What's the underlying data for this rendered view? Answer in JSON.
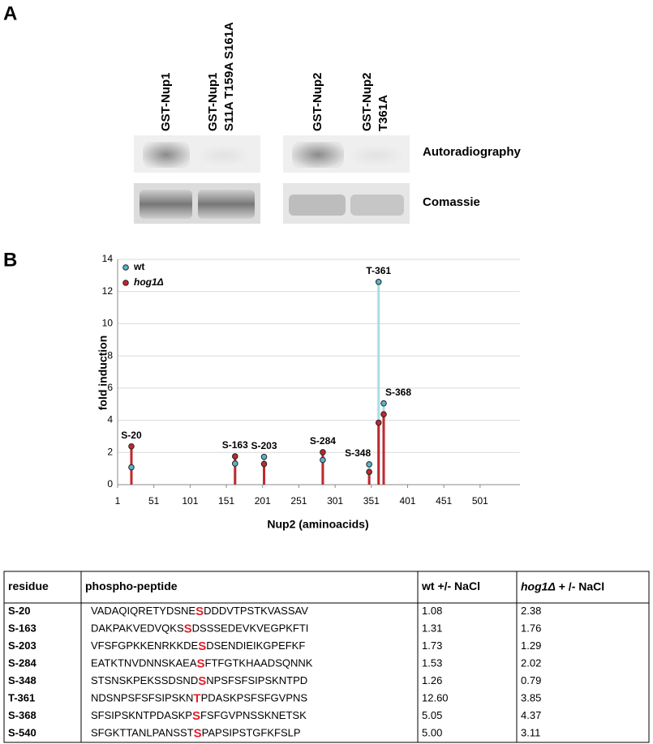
{
  "panel_a": {
    "label": "A",
    "lanes": [
      [
        "GST-Nup1"
      ],
      [
        "GST-Nup1",
        "S11A T159A S161A"
      ],
      [
        "GST-Nup2"
      ],
      [
        "GST-Nup2",
        "T361A"
      ]
    ],
    "rows": [
      "Autoradiography",
      "Comassie"
    ]
  },
  "chart_data": {
    "type": "lollipop",
    "label": "B",
    "xlabel": "Nup2 (aminoacids)",
    "ylabel": "fold induction",
    "x": [
      20,
      163,
      203,
      284,
      348,
      361,
      368
    ],
    "point_labels": [
      "S-20",
      "S-163",
      "S-203",
      "S-284",
      "S-348",
      "T-361",
      "S-368"
    ],
    "series": [
      {
        "name": "wt",
        "color": "#5ab4c9",
        "values": [
          1.08,
          1.31,
          1.73,
          1.53,
          1.26,
          12.6,
          5.05
        ]
      },
      {
        "name": "hog1Δ",
        "color": "#c0282d",
        "values": [
          2.38,
          1.76,
          1.29,
          2.02,
          0.79,
          3.85,
          4.37
        ]
      }
    ],
    "xlim": [
      1,
      556
    ],
    "ylim": [
      0,
      14
    ],
    "xticks": [
      1,
      51,
      101,
      151,
      201,
      251,
      301,
      351,
      401,
      451,
      501
    ],
    "yticks": [
      0,
      2,
      4,
      6,
      8,
      10,
      12,
      14
    ],
    "grid": true,
    "legend": "upper left"
  },
  "table": {
    "header": [
      "residue",
      "phospho-peptide",
      "wt +/- NaCl",
      [
        "hog1Δ",
        " + /- NaCl"
      ]
    ],
    "rows": [
      [
        "S-20",
        [
          "VADAQIQRETYDSNE",
          "S",
          "DDDVTPSTKVASSAV"
        ],
        "1.08",
        "2.38"
      ],
      [
        "S-163",
        [
          "DAKPAKVEDVQKS",
          "S",
          "DSSSEDEVKVEGPKFTI"
        ],
        "1.31",
        "1.76"
      ],
      [
        "S-203",
        [
          "VFSFGPKKENRKKDE",
          "S",
          "DSENDIEIKGPEFKF"
        ],
        "1.73",
        "1.29"
      ],
      [
        "S-284",
        [
          "EATKTNVDNNSKAEA",
          "S",
          "FTFGTKHAADSQNNK"
        ],
        "1.53",
        "2.02"
      ],
      [
        "S-348",
        [
          "STSNSKPEKSSDSND",
          "S",
          "NPSFSFSIPSKNTPD"
        ],
        "1.26",
        "0.79"
      ],
      [
        "T-361",
        [
          "NDSNPSFSFSIPSKN",
          "T",
          "PDASKPSFSFGVPNS"
        ],
        "12.60",
        "3.85"
      ],
      [
        "S-368",
        [
          "SFSIPSKNTPDASKP",
          "S",
          "FSFGVPNSSKNETSK"
        ],
        "5.05",
        "4.37"
      ],
      [
        "S-540",
        [
          "SFGKTTANLPANSST",
          "S",
          "PAPSIPSTGFKFSLP"
        ],
        "5.00",
        "3.11"
      ]
    ]
  }
}
